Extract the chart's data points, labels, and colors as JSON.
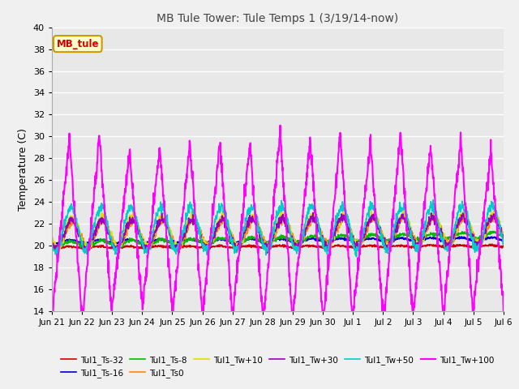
{
  "title": "MB Tule Tower: Tule Temps 1 (3/19/14-now)",
  "ylabel": "Temperature (C)",
  "ylim": [
    14,
    40
  ],
  "yticks": [
    14,
    16,
    18,
    20,
    22,
    24,
    26,
    28,
    30,
    32,
    34,
    36,
    38,
    40
  ],
  "xtick_labels": [
    "Jun 21",
    "Jun 22",
    "Jun 23",
    "Jun 24",
    "Jun 25",
    "Jun 26",
    "Jun 27",
    "Jun 28",
    "Jun 29",
    "Jun 30",
    "Jul 1",
    "Jul 2",
    "Jul 3",
    "Jul 4",
    "Jul 5",
    "Jul 6"
  ],
  "series_order": [
    "Tul1_Ts-32",
    "Tul1_Ts-16",
    "Tul1_Ts-8",
    "Tul1_Ts0",
    "Tul1_Tw+10",
    "Tul1_Tw+30",
    "Tul1_Tw+50",
    "Tul1_Tw+100"
  ],
  "legend_row1": [
    "Tul1_Ts-32",
    "Tul1_Ts-16",
    "Tul1_Ts-8",
    "Tul1_Ts0",
    "Tul1_Tw+10",
    "Tul1_Tw+30"
  ],
  "legend_row2": [
    "Tul1_Tw+50",
    "Tul1_Tw+100"
  ],
  "series": {
    "Tul1_Ts-32": {
      "color": "#cc0000",
      "lw": 1.2
    },
    "Tul1_Ts-16": {
      "color": "#0000cc",
      "lw": 1.2
    },
    "Tul1_Ts-8": {
      "color": "#00bb00",
      "lw": 1.2
    },
    "Tul1_Ts0": {
      "color": "#ff8800",
      "lw": 1.2
    },
    "Tul1_Tw+10": {
      "color": "#dddd00",
      "lw": 1.2
    },
    "Tul1_Tw+30": {
      "color": "#9900bb",
      "lw": 1.2
    },
    "Tul1_Tw+50": {
      "color": "#00cccc",
      "lw": 1.2
    },
    "Tul1_Tw+100": {
      "color": "#ff00ff",
      "lw": 1.5
    }
  },
  "annotation_text": "MB_tule",
  "annotation_color": "#cc0000",
  "annotation_bg": "#ffffcc",
  "annotation_border": "#cc9900",
  "plot_bg": "#e8e8e8",
  "fig_bg": "#f0f0f0",
  "grid_color": "#ffffff",
  "n_points": 1500
}
